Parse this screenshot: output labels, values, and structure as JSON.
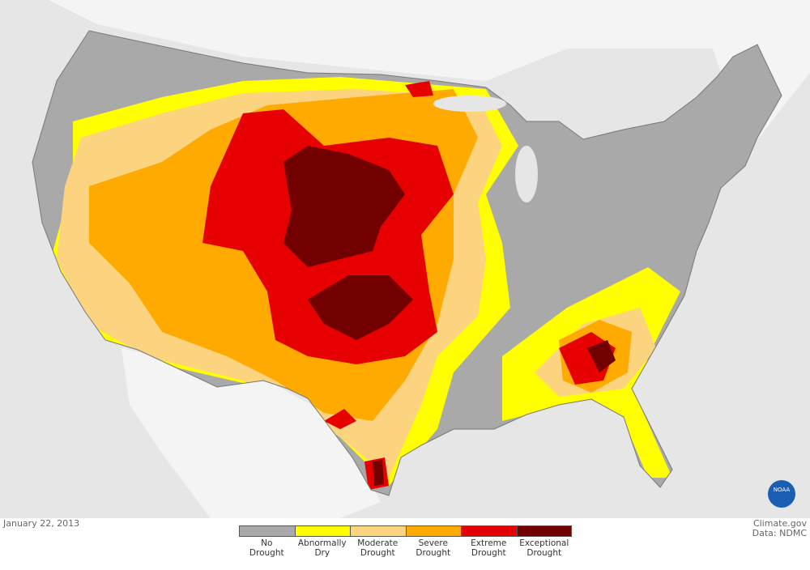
{
  "date": "January 22, 2013",
  "credit": {
    "source": "Climate.gov",
    "data": "Data: NDMC"
  },
  "logo": "NOAA",
  "legend": [
    {
      "label": [
        "No",
        "Drought"
      ],
      "color": "#a9a9a9"
    },
    {
      "label": [
        "Abnormally",
        "Dry"
      ],
      "color": "#ffff00"
    },
    {
      "label": [
        "Moderate",
        "Drought"
      ],
      "color": "#fcd37f"
    },
    {
      "label": [
        "Severe",
        "Drought"
      ],
      "color": "#ffaa00"
    },
    {
      "label": [
        "Extreme",
        "Drought"
      ],
      "color": "#e60000"
    },
    {
      "label": [
        "Exceptional",
        "Drought"
      ],
      "color": "#730000"
    }
  ]
}
